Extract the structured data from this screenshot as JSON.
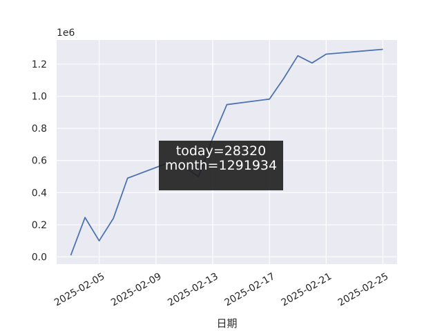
{
  "chart_data": {
    "type": "line",
    "title": "",
    "xlabel": "日期",
    "ylabel": "",
    "y_offset_label": "1e6",
    "ylim": [
      -45000,
      1350000
    ],
    "xlim": [
      "2025-02-02",
      "2025-02-26"
    ],
    "grid": true,
    "legend": "none",
    "x_tick_labels": [
      "2025-02-05",
      "2025-02-09",
      "2025-02-13",
      "2025-02-17",
      "2025-02-21",
      "2025-02-25"
    ],
    "y_tick_values": [
      0,
      200000,
      400000,
      600000,
      800000,
      1000000,
      1200000
    ],
    "y_tick_labels": [
      "0.0",
      "0.2",
      "0.4",
      "0.6",
      "0.8",
      "1.0",
      "1.2"
    ],
    "series": [
      {
        "x": [
          "2025-02-03",
          "2025-02-04",
          "2025-02-05",
          "2025-02-06",
          "2025-02-07",
          "2025-02-10",
          "2025-02-11",
          "2025-02-12",
          "2025-02-13",
          "2025-02-14",
          "2025-02-17",
          "2025-02-18",
          "2025-02-19",
          "2025-02-20",
          "2025-02-21",
          "2025-02-25"
        ],
        "values": [
          10000,
          245000,
          100000,
          240000,
          490000,
          590000,
          560000,
          500000,
          740000,
          948000,
          982000,
          1110000,
          1252000,
          1207000,
          1262000,
          1291934
        ]
      }
    ],
    "annotation": {
      "line1": "today=28320",
      "line2": "month=1291934"
    },
    "colors": {
      "line": "#4c72b0",
      "plot_bg": "#eaeaf2",
      "grid": "#ffffff",
      "annotation_bg": "#1e1e1e"
    }
  }
}
